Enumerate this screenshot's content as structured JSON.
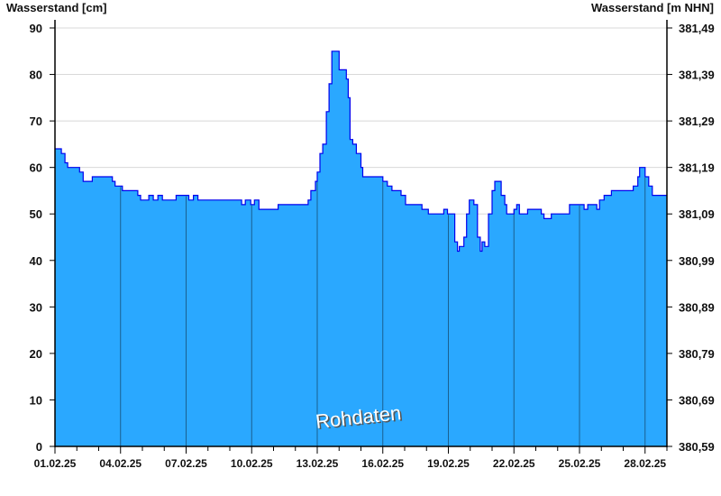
{
  "chart_data": {
    "type": "area",
    "ylabel_left": "Wasserstand [cm]",
    "ylabel_right": "Wasserstand [m NHN]",
    "annotation": "Rohdaten",
    "ylim": [
      0,
      90
    ],
    "yticks_left": [
      "0",
      "10",
      "20",
      "30",
      "40",
      "50",
      "60",
      "70",
      "80",
      "90"
    ],
    "yticks_right": [
      "380,59",
      "380,69",
      "380,79",
      "380,89",
      "380,99",
      "381,09",
      "381,19",
      "381,29",
      "381,39",
      "381,49"
    ],
    "xlim": [
      "2025-02-01 00:00",
      "2025-03-01 00:00"
    ],
    "xtick_labels": [
      "01.02.25",
      "04.02.25",
      "07.02.25",
      "10.02.25",
      "13.02.25",
      "16.02.25",
      "19.02.25",
      "22.02.25",
      "25.02.25",
      "28.02.25"
    ],
    "grid": true,
    "colors": {
      "fill": "#2aa8ff",
      "line": "#0000ee",
      "grid": "#d8d8d8",
      "day_lines": "#1a5f8f"
    },
    "series": [
      {
        "points": [
          [
            "2025-02-01 00:00",
            64
          ],
          [
            "2025-02-01 07:00",
            63
          ],
          [
            "2025-02-01 11:00",
            61
          ],
          [
            "2025-02-01 14:00",
            60
          ],
          [
            "2025-02-02 03:00",
            59
          ],
          [
            "2025-02-02 07:00",
            57
          ],
          [
            "2025-02-02 17:00",
            58
          ],
          [
            "2025-02-03 15:00",
            57
          ],
          [
            "2025-02-03 18:00",
            56
          ],
          [
            "2025-02-04 02:00",
            55
          ],
          [
            "2025-02-04 19:00",
            54
          ],
          [
            "2025-02-04 22:00",
            53
          ],
          [
            "2025-02-05 07:00",
            54
          ],
          [
            "2025-02-05 12:00",
            53
          ],
          [
            "2025-02-05 17:00",
            54
          ],
          [
            "2025-02-05 22:00",
            53
          ],
          [
            "2025-02-06 08:00",
            53
          ],
          [
            "2025-02-06 13:00",
            54
          ],
          [
            "2025-02-06 23:00",
            54
          ],
          [
            "2025-02-07 03:00",
            53
          ],
          [
            "2025-02-07 08:00",
            54
          ],
          [
            "2025-02-07 13:00",
            53
          ],
          [
            "2025-02-09 10:00",
            53
          ],
          [
            "2025-02-09 13:00",
            52
          ],
          [
            "2025-02-09 17:00",
            53
          ],
          [
            "2025-02-09 23:00",
            52
          ],
          [
            "2025-02-10 03:00",
            53
          ],
          [
            "2025-02-10 08:00",
            51
          ],
          [
            "2025-02-11 05:00",
            52
          ],
          [
            "2025-02-12 10:00",
            52
          ],
          [
            "2025-02-12 14:00",
            53
          ],
          [
            "2025-02-12 17:00",
            55
          ],
          [
            "2025-02-12 22:00",
            57
          ],
          [
            "2025-02-13 00:00",
            59
          ],
          [
            "2025-02-13 03:00",
            63
          ],
          [
            "2025-02-13 06:00",
            65
          ],
          [
            "2025-02-13 10:00",
            72
          ],
          [
            "2025-02-13 13:00",
            78
          ],
          [
            "2025-02-13 16:00",
            85
          ],
          [
            "2025-02-13 22:00",
            85
          ],
          [
            "2025-02-14 00:00",
            81
          ],
          [
            "2025-02-14 05:00",
            81
          ],
          [
            "2025-02-14 08:00",
            79
          ],
          [
            "2025-02-14 10:00",
            75
          ],
          [
            "2025-02-14 12:00",
            66
          ],
          [
            "2025-02-14 15:00",
            65
          ],
          [
            "2025-02-14 19:00",
            63
          ],
          [
            "2025-02-15 00:00",
            60
          ],
          [
            "2025-02-15 02:00",
            58
          ],
          [
            "2025-02-15 19:00",
            58
          ],
          [
            "2025-02-16 00:00",
            57
          ],
          [
            "2025-02-16 05:00",
            56
          ],
          [
            "2025-02-16 10:00",
            55
          ],
          [
            "2025-02-16 20:00",
            54
          ],
          [
            "2025-02-17 01:00",
            52
          ],
          [
            "2025-02-17 16:00",
            52
          ],
          [
            "2025-02-17 19:00",
            51
          ],
          [
            "2025-02-18 02:00",
            50
          ],
          [
            "2025-02-18 17:00",
            50
          ],
          [
            "2025-02-18 19:00",
            51
          ],
          [
            "2025-02-18 23:00",
            50
          ],
          [
            "2025-02-19 05:00",
            50
          ],
          [
            "2025-02-19 07:00",
            44
          ],
          [
            "2025-02-19 10:00",
            42
          ],
          [
            "2025-02-19 12:00",
            43
          ],
          [
            "2025-02-19 17:00",
            45
          ],
          [
            "2025-02-19 20:00",
            50
          ],
          [
            "2025-02-19 23:00",
            53
          ],
          [
            "2025-02-20 04:00",
            52
          ],
          [
            "2025-02-20 08:00",
            45
          ],
          [
            "2025-02-20 11:00",
            42
          ],
          [
            "2025-02-20 13:00",
            44
          ],
          [
            "2025-02-20 16:00",
            43
          ],
          [
            "2025-02-20 20:00",
            50
          ],
          [
            "2025-02-21 00:00",
            55
          ],
          [
            "2025-02-21 03:00",
            57
          ],
          [
            "2025-02-21 07:00",
            57
          ],
          [
            "2025-02-21 10:00",
            54
          ],
          [
            "2025-02-21 14:00",
            52
          ],
          [
            "2025-02-21 16:00",
            50
          ],
          [
            "2025-02-21 22:00",
            50
          ],
          [
            "2025-02-22 00:00",
            51
          ],
          [
            "2025-02-22 03:00",
            52
          ],
          [
            "2025-02-22 06:00",
            50
          ],
          [
            "2025-02-22 12:00",
            50
          ],
          [
            "2025-02-22 15:00",
            51
          ],
          [
            "2025-02-23 02:00",
            51
          ],
          [
            "2025-02-23 06:00",
            50
          ],
          [
            "2025-02-23 09:00",
            49
          ],
          [
            "2025-02-23 15:00",
            49
          ],
          [
            "2025-02-23 17:00",
            50
          ],
          [
            "2025-02-24 11:00",
            50
          ],
          [
            "2025-02-24 13:00",
            52
          ],
          [
            "2025-02-25 02:00",
            52
          ],
          [
            "2025-02-25 05:00",
            51
          ],
          [
            "2025-02-25 09:00",
            52
          ],
          [
            "2025-02-25 14:00",
            52
          ],
          [
            "2025-02-25 19:00",
            51
          ],
          [
            "2025-02-25 22:00",
            53
          ],
          [
            "2025-02-26 03:00",
            54
          ],
          [
            "2025-02-26 11:00",
            55
          ],
          [
            "2025-02-27 08:00",
            55
          ],
          [
            "2025-02-27 11:00",
            56
          ],
          [
            "2025-02-27 16:00",
            58
          ],
          [
            "2025-02-27 18:00",
            60
          ],
          [
            "2025-02-27 22:00",
            60
          ],
          [
            "2025-02-28 00:00",
            58
          ],
          [
            "2025-02-28 04:00",
            56
          ],
          [
            "2025-02-28 08:00",
            54
          ],
          [
            "2025-03-01 00:00",
            54
          ]
        ]
      }
    ]
  }
}
